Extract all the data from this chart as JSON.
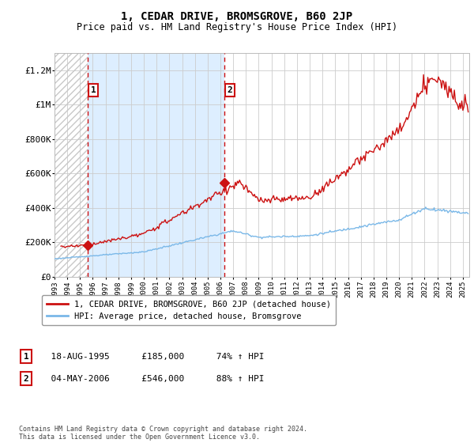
{
  "title": "1, CEDAR DRIVE, BROMSGROVE, B60 2JP",
  "subtitle": "Price paid vs. HM Land Registry's House Price Index (HPI)",
  "legend_line1": "1, CEDAR DRIVE, BROMSGROVE, B60 2JP (detached house)",
  "legend_line2": "HPI: Average price, detached house, Bromsgrove",
  "sale1_label": "1",
  "sale1_date": "18-AUG-1995",
  "sale1_price": "£185,000",
  "sale1_hpi": "74% ↑ HPI",
  "sale1_year": 1995.63,
  "sale1_value": 185000,
  "sale2_label": "2",
  "sale2_date": "04-MAY-2006",
  "sale2_price": "£546,000",
  "sale2_hpi": "88% ↑ HPI",
  "sale2_year": 2006.34,
  "sale2_value": 546000,
  "hpi_color": "#7ab8e8",
  "price_color": "#cc1111",
  "vline_color": "#cc1111",
  "hatch_color": "#c8c8c8",
  "blue_fill_color": "#ddeeff",
  "ylim": [
    0,
    1300000
  ],
  "xlim_start": 1993.0,
  "xlim_end": 2025.5,
  "footer": "Contains HM Land Registry data © Crown copyright and database right 2024.\nThis data is licensed under the Open Government Licence v3.0."
}
